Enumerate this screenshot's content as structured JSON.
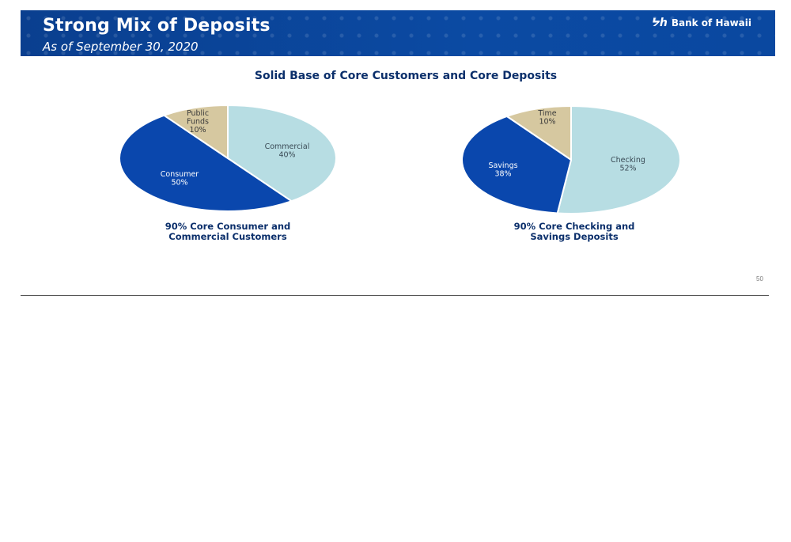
{
  "header": {
    "title": "Strong Mix of Deposits",
    "subtitle": "As of September 30, 2020",
    "logo_text": "Bank of Hawaii",
    "logo_mark": "ᔭh"
  },
  "section_title": "Solid Base of Core Customers and Core Deposits",
  "captions": {
    "left": [
      "90% Core Consumer and",
      "Commercial Customers"
    ],
    "right": [
      "90% Core Checking and",
      "Savings Deposits"
    ]
  },
  "page_number": "50",
  "colors": {
    "banner": "#0b4aa3",
    "light_blue": "#b7dde3",
    "dark_blue": "#0a47ad",
    "tan": "#d6c8a0",
    "title_text": "#0b2f6b"
  },
  "chart_data": [
    {
      "type": "pie",
      "title": "",
      "slices": [
        {
          "name": "Commercial",
          "value": 40,
          "label": "40%",
          "color": "#b7dde3",
          "text_color": "#3a4a55"
        },
        {
          "name": "Consumer",
          "value": 50,
          "label": "50%",
          "color": "#0a47ad",
          "text_color": "#ffffff"
        },
        {
          "name": "Public Funds",
          "value": 10,
          "label": "10%",
          "color": "#d6c8a0",
          "text_color": "#3a3a3a"
        }
      ]
    },
    {
      "type": "pie",
      "title": "",
      "slices": [
        {
          "name": "Checking",
          "value": 52,
          "label": "52%",
          "color": "#b7dde3",
          "text_color": "#3a4a55"
        },
        {
          "name": "Savings",
          "value": 38,
          "label": "38%",
          "color": "#0a47ad",
          "text_color": "#ffffff"
        },
        {
          "name": "Time",
          "value": 10,
          "label": "10%",
          "color": "#d6c8a0",
          "text_color": "#3a3a3a"
        }
      ]
    }
  ]
}
